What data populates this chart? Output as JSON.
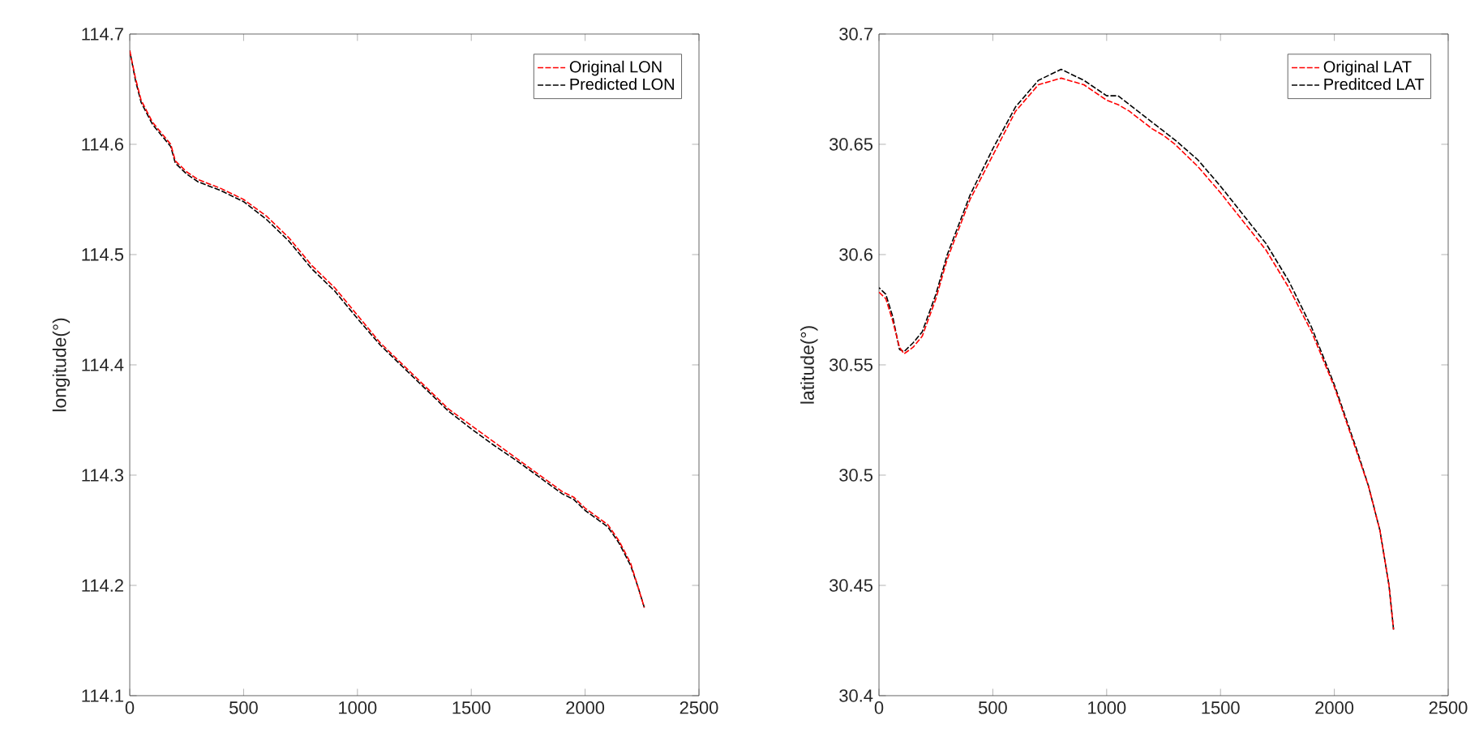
{
  "chart_data": [
    {
      "type": "line",
      "ylabel": "longitude(°)",
      "xlim": [
        0,
        2500
      ],
      "xticks": [
        0,
        500,
        1000,
        1500,
        2000,
        2500
      ],
      "ylim": [
        114.1,
        114.7
      ],
      "yticks": [
        114.1,
        114.2,
        114.3,
        114.4,
        114.5,
        114.6,
        114.7
      ],
      "legend": "top right",
      "line_style": "dashed",
      "x": [
        0,
        25,
        50,
        100,
        180,
        200,
        250,
        300,
        400,
        500,
        600,
        700,
        800,
        900,
        1000,
        1100,
        1200,
        1300,
        1400,
        1500,
        1600,
        1700,
        1800,
        1900,
        1950,
        2000,
        2100,
        2150,
        2200,
        2230,
        2260
      ],
      "series": [
        {
          "name": "Original LON",
          "color": "#ff0000",
          "values": [
            114.685,
            114.66,
            114.64,
            114.62,
            114.6,
            114.585,
            114.575,
            114.568,
            114.56,
            114.55,
            114.535,
            114.515,
            114.49,
            114.47,
            114.445,
            114.42,
            114.4,
            114.38,
            114.36,
            114.345,
            114.33,
            114.315,
            114.3,
            114.285,
            114.28,
            114.27,
            114.255,
            114.24,
            114.22,
            114.2,
            114.18
          ]
        },
        {
          "name": "Predicted LON",
          "color": "#000000",
          "values": [
            114.685,
            114.658,
            114.638,
            114.618,
            114.598,
            114.583,
            114.573,
            114.566,
            114.558,
            114.548,
            114.532,
            114.512,
            114.487,
            114.467,
            114.442,
            114.418,
            114.398,
            114.378,
            114.358,
            114.342,
            114.327,
            114.313,
            114.298,
            114.283,
            114.278,
            114.268,
            114.253,
            114.238,
            114.218,
            114.2,
            114.18
          ]
        }
      ]
    },
    {
      "type": "line",
      "ylabel": "latitude(°)",
      "xlim": [
        0,
        2500
      ],
      "xticks": [
        0,
        500,
        1000,
        1500,
        2000,
        2500
      ],
      "ylim": [
        30.4,
        30.7
      ],
      "yticks": [
        30.4,
        30.45,
        30.5,
        30.55,
        30.6,
        30.65,
        30.7
      ],
      "legend": "top right",
      "line_style": "dashed",
      "x": [
        0,
        30,
        60,
        90,
        110,
        150,
        190,
        250,
        300,
        400,
        500,
        600,
        700,
        800,
        900,
        1000,
        1050,
        1100,
        1200,
        1250,
        1300,
        1400,
        1500,
        1600,
        1700,
        1800,
        1900,
        2000,
        2100,
        2150,
        2200,
        2240,
        2260
      ],
      "series": [
        {
          "name": "Original LAT",
          "color": "#ff0000",
          "values": [
            30.583,
            30.58,
            30.57,
            30.558,
            30.555,
            30.558,
            30.563,
            30.58,
            30.598,
            30.625,
            30.645,
            30.665,
            30.677,
            30.68,
            30.677,
            30.67,
            30.668,
            30.665,
            30.657,
            30.654,
            30.65,
            30.64,
            30.628,
            30.615,
            30.602,
            30.585,
            30.565,
            30.54,
            30.51,
            30.495,
            30.475,
            30.45,
            30.43
          ]
        },
        {
          "name": "Preditced LAT",
          "color": "#000000",
          "values": [
            30.585,
            30.582,
            30.572,
            30.557,
            30.556,
            30.56,
            30.565,
            30.582,
            30.6,
            30.627,
            30.648,
            30.667,
            30.679,
            30.684,
            30.679,
            30.672,
            30.672,
            30.668,
            30.66,
            30.656,
            30.652,
            30.643,
            30.631,
            30.618,
            30.605,
            30.588,
            30.567,
            30.541,
            30.511,
            30.495,
            30.475,
            30.45,
            30.43
          ]
        }
      ]
    }
  ]
}
